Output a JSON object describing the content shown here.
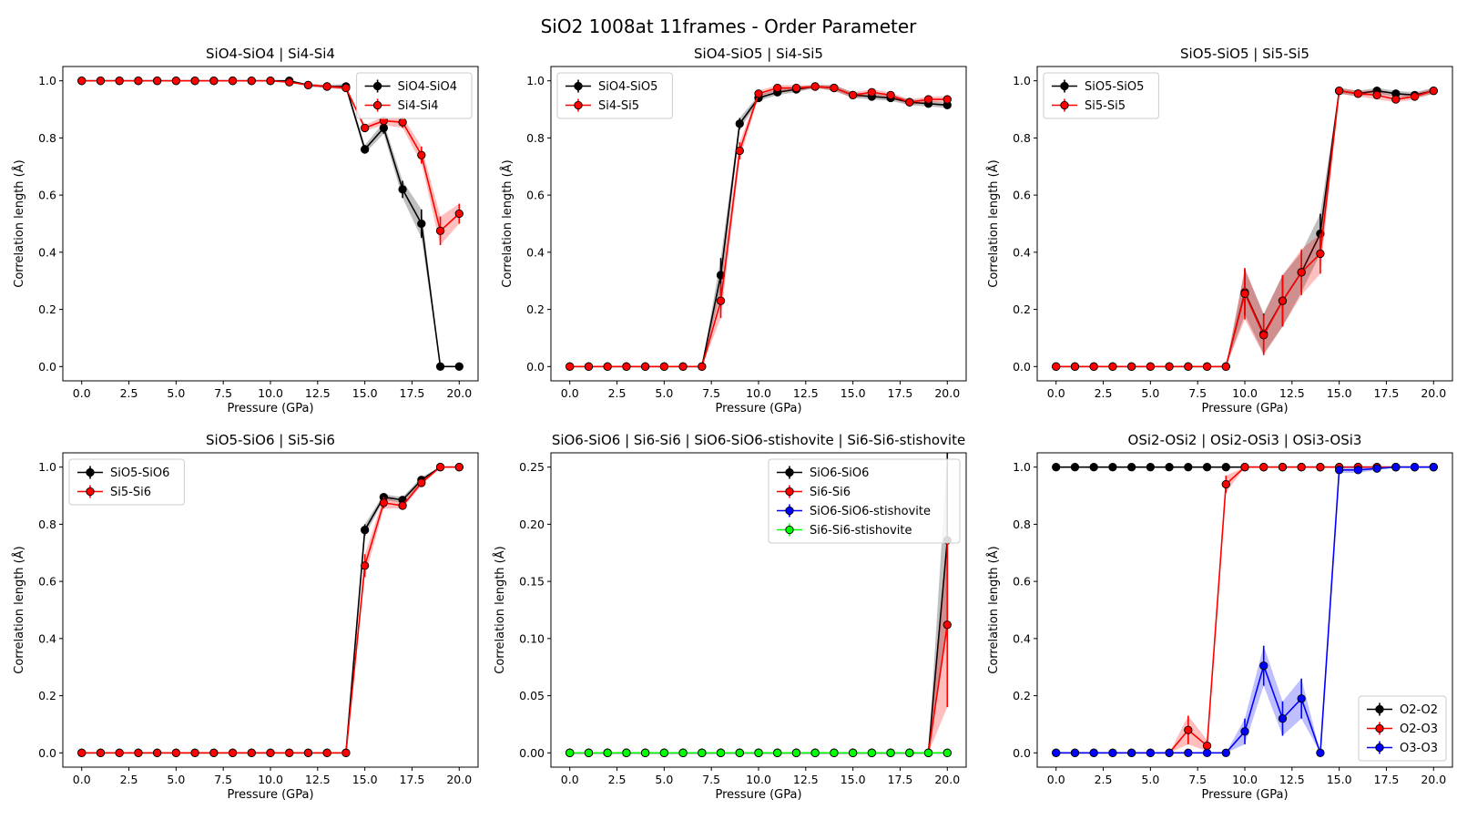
{
  "figure": {
    "title": "SiO2 1008at 11frames - Order Parameter"
  },
  "chart_data": [
    {
      "type": "line",
      "title": "SiO4-SiO4 | Si4-Si4",
      "xlabel": "Pressure (GPa)",
      "ylabel": "Correlation length (Å)",
      "xlim": [
        -1,
        21
      ],
      "ylim": [
        -0.05,
        1.05
      ],
      "xticks": [
        0,
        2.5,
        5,
        7.5,
        10,
        12.5,
        15,
        17.5,
        20
      ],
      "xtick_labels": [
        "0.0",
        "2.5",
        "5.0",
        "7.5",
        "10.0",
        "12.5",
        "15.0",
        "17.5",
        "20.0"
      ],
      "yticks": [
        0,
        0.2,
        0.4,
        0.6,
        0.8,
        1.0
      ],
      "ytick_labels": [
        "0.0",
        "0.2",
        "0.4",
        "0.6",
        "0.8",
        "1.0"
      ],
      "legend_loc": "upper-right",
      "x": [
        0,
        1,
        2,
        3,
        4,
        5,
        6,
        7,
        8,
        9,
        10,
        11,
        12,
        13,
        14,
        15,
        16,
        17,
        18,
        19,
        20
      ],
      "series": [
        {
          "name": "SiO4-SiO4",
          "color": "#000000",
          "values": [
            1,
            1,
            1,
            1,
            1,
            1,
            1,
            1,
            1,
            1,
            1,
            1,
            0.985,
            0.98,
            0.98,
            0.76,
            0.835,
            0.62,
            0.5,
            0,
            0
          ],
          "errors": [
            0,
            0,
            0,
            0,
            0,
            0,
            0,
            0,
            0,
            0,
            0,
            0,
            0.005,
            0.005,
            0.01,
            0.015,
            0.02,
            0.03,
            0.05,
            0,
            0
          ]
        },
        {
          "name": "Si4-Si4",
          "color": "#ff0000",
          "values": [
            1,
            1,
            1,
            1,
            1,
            1,
            1,
            1,
            1,
            1,
            1,
            0.995,
            0.985,
            0.98,
            0.975,
            0.835,
            0.86,
            0.855,
            0.74,
            0.475,
            0.535
          ],
          "errors": [
            0,
            0,
            0,
            0,
            0,
            0,
            0,
            0,
            0,
            0,
            0,
            0,
            0.005,
            0.005,
            0.005,
            0.01,
            0.015,
            0.02,
            0.03,
            0.05,
            0.035
          ]
        }
      ]
    },
    {
      "type": "line",
      "title": "SiO4-SiO5 | Si4-Si5",
      "xlabel": "Pressure (GPa)",
      "ylabel": "Correlation length (Å)",
      "xlim": [
        -1,
        21
      ],
      "ylim": [
        -0.05,
        1.05
      ],
      "xticks": [
        0,
        2.5,
        5,
        7.5,
        10,
        12.5,
        15,
        17.5,
        20
      ],
      "xtick_labels": [
        "0.0",
        "2.5",
        "5.0",
        "7.5",
        "10.0",
        "12.5",
        "15.0",
        "17.5",
        "20.0"
      ],
      "yticks": [
        0,
        0.2,
        0.4,
        0.6,
        0.8,
        1.0
      ],
      "ytick_labels": [
        "0.0",
        "0.2",
        "0.4",
        "0.6",
        "0.8",
        "1.0"
      ],
      "legend_loc": "upper-left",
      "x": [
        0,
        1,
        2,
        3,
        4,
        5,
        6,
        7,
        8,
        9,
        10,
        11,
        12,
        13,
        14,
        15,
        16,
        17,
        18,
        19,
        20
      ],
      "series": [
        {
          "name": "SiO4-SiO5",
          "color": "#000000",
          "values": [
            0,
            0,
            0,
            0,
            0,
            0,
            0,
            0,
            0.32,
            0.85,
            0.94,
            0.96,
            0.97,
            0.98,
            0.975,
            0.95,
            0.945,
            0.94,
            0.925,
            0.92,
            0.915
          ],
          "errors": [
            0,
            0,
            0,
            0,
            0,
            0,
            0,
            0,
            0.06,
            0.02,
            0.01,
            0.01,
            0.01,
            0.005,
            0.01,
            0.01,
            0.01,
            0.01,
            0.01,
            0.01,
            0.01
          ]
        },
        {
          "name": "Si4-Si5",
          "color": "#ff0000",
          "values": [
            0,
            0,
            0,
            0,
            0,
            0,
            0,
            0,
            0.23,
            0.755,
            0.955,
            0.975,
            0.975,
            0.98,
            0.975,
            0.95,
            0.96,
            0.95,
            0.925,
            0.935,
            0.935
          ],
          "errors": [
            0,
            0,
            0,
            0,
            0,
            0,
            0,
            0,
            0.06,
            0.03,
            0.01,
            0.01,
            0.01,
            0.005,
            0.01,
            0.01,
            0.01,
            0.01,
            0.01,
            0.01,
            0.01
          ]
        }
      ]
    },
    {
      "type": "line",
      "title": "SiO5-SiO5 | Si5-Si5",
      "xlabel": "Pressure (GPa)",
      "ylabel": "Correlation length (Å)",
      "xlim": [
        -1,
        21
      ],
      "ylim": [
        -0.05,
        1.05
      ],
      "xticks": [
        0,
        2.5,
        5,
        7.5,
        10,
        12.5,
        15,
        17.5,
        20
      ],
      "xtick_labels": [
        "0.0",
        "2.5",
        "5.0",
        "7.5",
        "10.0",
        "12.5",
        "15.0",
        "17.5",
        "20.0"
      ],
      "yticks": [
        0,
        0.2,
        0.4,
        0.6,
        0.8,
        1.0
      ],
      "ytick_labels": [
        "0.0",
        "0.2",
        "0.4",
        "0.6",
        "0.8",
        "1.0"
      ],
      "legend_loc": "upper-left",
      "x": [
        0,
        1,
        2,
        3,
        4,
        5,
        6,
        7,
        8,
        9,
        10,
        11,
        12,
        13,
        14,
        15,
        16,
        17,
        18,
        19,
        20
      ],
      "series": [
        {
          "name": "SiO5-SiO5",
          "color": "#000000",
          "values": [
            0,
            0,
            0,
            0,
            0,
            0,
            0,
            0,
            0,
            0,
            0.26,
            0.115,
            0.23,
            0.33,
            0.465,
            0.965,
            0.955,
            0.965,
            0.955,
            0.95,
            0.965
          ],
          "errors": [
            0,
            0,
            0,
            0,
            0,
            0,
            0,
            0,
            0,
            0,
            0.08,
            0.07,
            0.09,
            0.07,
            0.07,
            0.01,
            0.01,
            0.01,
            0.01,
            0.01,
            0.01
          ]
        },
        {
          "name": "Si5-Si5",
          "color": "#ff0000",
          "values": [
            0,
            0,
            0,
            0,
            0,
            0,
            0,
            0,
            0,
            0,
            0.255,
            0.11,
            0.23,
            0.33,
            0.395,
            0.965,
            0.955,
            0.95,
            0.935,
            0.945,
            0.965
          ],
          "errors": [
            0,
            0,
            0,
            0,
            0,
            0,
            0,
            0,
            0,
            0,
            0.09,
            0.07,
            0.09,
            0.08,
            0.07,
            0.01,
            0.01,
            0.015,
            0.01,
            0.01,
            0.01
          ]
        }
      ]
    },
    {
      "type": "line",
      "title": "SiO5-SiO6 | Si5-Si6",
      "xlabel": "Pressure (GPa)",
      "ylabel": "Correlation length (Å)",
      "xlim": [
        -1,
        21
      ],
      "ylim": [
        -0.05,
        1.05
      ],
      "xticks": [
        0,
        2.5,
        5,
        7.5,
        10,
        12.5,
        15,
        17.5,
        20
      ],
      "xtick_labels": [
        "0.0",
        "2.5",
        "5.0",
        "7.5",
        "10.0",
        "12.5",
        "15.0",
        "17.5",
        "20.0"
      ],
      "yticks": [
        0,
        0.2,
        0.4,
        0.6,
        0.8,
        1.0
      ],
      "ytick_labels": [
        "0.0",
        "0.2",
        "0.4",
        "0.6",
        "0.8",
        "1.0"
      ],
      "legend_loc": "upper-left",
      "x": [
        0,
        1,
        2,
        3,
        4,
        5,
        6,
        7,
        8,
        9,
        10,
        11,
        12,
        13,
        14,
        15,
        16,
        17,
        18,
        19,
        20
      ],
      "series": [
        {
          "name": "SiO5-SiO6",
          "color": "#000000",
          "values": [
            0,
            0,
            0,
            0,
            0,
            0,
            0,
            0,
            0,
            0,
            0,
            0,
            0,
            0,
            0,
            0.78,
            0.895,
            0.885,
            0.955,
            1.0,
            1.0
          ],
          "errors": [
            0,
            0,
            0,
            0,
            0,
            0,
            0,
            0,
            0,
            0,
            0,
            0,
            0,
            0,
            0,
            0.02,
            0.01,
            0.01,
            0.01,
            0,
            0
          ]
        },
        {
          "name": "Si5-Si6",
          "color": "#ff0000",
          "values": [
            0,
            0,
            0,
            0,
            0,
            0,
            0,
            0,
            0,
            0,
            0,
            0,
            0,
            0,
            0,
            0.655,
            0.875,
            0.865,
            0.945,
            1.0,
            1.0
          ],
          "errors": [
            0,
            0,
            0,
            0,
            0,
            0,
            0,
            0,
            0,
            0,
            0,
            0,
            0,
            0,
            0,
            0.04,
            0.02,
            0.01,
            0.01,
            0,
            0
          ]
        }
      ]
    },
    {
      "type": "line",
      "title": "SiO6-SiO6 | Si6-Si6 | SiO6-SiO6-stishovite | Si6-Si6-stishovite",
      "xlabel": "Pressure (GPa)",
      "ylabel": "Correlation length (Å)",
      "xlim": [
        -1,
        21
      ],
      "ylim": [
        -0.0125,
        0.2625
      ],
      "xticks": [
        0,
        2.5,
        5,
        7.5,
        10,
        12.5,
        15,
        17.5,
        20
      ],
      "xtick_labels": [
        "0.0",
        "2.5",
        "5.0",
        "7.5",
        "10.0",
        "12.5",
        "15.0",
        "17.5",
        "20.0"
      ],
      "yticks": [
        0,
        0.05,
        0.1,
        0.15,
        0.2,
        0.25
      ],
      "ytick_labels": [
        "0.00",
        "0.05",
        "0.10",
        "0.15",
        "0.20",
        "0.25"
      ],
      "legend_loc": "upper-right",
      "x": [
        0,
        1,
        2,
        3,
        4,
        5,
        6,
        7,
        8,
        9,
        10,
        11,
        12,
        13,
        14,
        15,
        16,
        17,
        18,
        19,
        20
      ],
      "series": [
        {
          "name": "SiO6-SiO6",
          "color": "#000000",
          "values": [
            0,
            0,
            0,
            0,
            0,
            0,
            0,
            0,
            0,
            0,
            0,
            0,
            0,
            0,
            0,
            0,
            0,
            0,
            0,
            0,
            0.186
          ],
          "errors": [
            0,
            0,
            0,
            0,
            0,
            0,
            0,
            0,
            0,
            0,
            0,
            0,
            0,
            0,
            0,
            0,
            0,
            0,
            0,
            0,
            0.077
          ]
        },
        {
          "name": "Si6-Si6",
          "color": "#ff0000",
          "values": [
            0,
            0,
            0,
            0,
            0,
            0,
            0,
            0,
            0,
            0,
            0,
            0,
            0,
            0,
            0,
            0,
            0,
            0,
            0,
            0,
            0.112
          ],
          "errors": [
            0,
            0,
            0,
            0,
            0,
            0,
            0,
            0,
            0,
            0,
            0,
            0,
            0,
            0,
            0,
            0,
            0,
            0,
            0,
            0,
            0.072
          ]
        },
        {
          "name": "SiO6-SiO6-stishovite",
          "color": "#0000ff",
          "values": [
            0,
            0,
            0,
            0,
            0,
            0,
            0,
            0,
            0,
            0,
            0,
            0,
            0,
            0,
            0,
            0,
            0,
            0,
            0,
            0,
            0
          ],
          "errors": [
            0,
            0,
            0,
            0,
            0,
            0,
            0,
            0,
            0,
            0,
            0,
            0,
            0,
            0,
            0,
            0,
            0,
            0,
            0,
            0,
            0
          ]
        },
        {
          "name": "Si6-Si6-stishovite",
          "color": "#00ff00",
          "values": [
            0,
            0,
            0,
            0,
            0,
            0,
            0,
            0,
            0,
            0,
            0,
            0,
            0,
            0,
            0,
            0,
            0,
            0,
            0,
            0,
            0
          ],
          "errors": [
            0,
            0,
            0,
            0,
            0,
            0,
            0,
            0,
            0,
            0,
            0,
            0,
            0,
            0,
            0,
            0,
            0,
            0,
            0,
            0,
            0
          ]
        }
      ]
    },
    {
      "type": "line",
      "title": "OSi2-OSi2 | OSi2-OSi3 | OSi3-OSi3",
      "xlabel": "Pressure (GPa)",
      "ylabel": "Correlation length (Å)",
      "xlim": [
        -1,
        21
      ],
      "ylim": [
        -0.05,
        1.05
      ],
      "xticks": [
        0,
        2.5,
        5,
        7.5,
        10,
        12.5,
        15,
        17.5,
        20
      ],
      "xtick_labels": [
        "0.0",
        "2.5",
        "5.0",
        "7.5",
        "10.0",
        "12.5",
        "15.0",
        "17.5",
        "20.0"
      ],
      "yticks": [
        0,
        0.2,
        0.4,
        0.6,
        0.8,
        1.0
      ],
      "ytick_labels": [
        "0.0",
        "0.2",
        "0.4",
        "0.6",
        "0.8",
        "1.0"
      ],
      "legend_loc": "lower-right",
      "x": [
        0,
        1,
        2,
        3,
        4,
        5,
        6,
        7,
        8,
        9,
        10,
        11,
        12,
        13,
        14,
        15,
        16,
        17,
        18,
        19,
        20
      ],
      "series": [
        {
          "name": "O2-O2",
          "color": "#000000",
          "values": [
            1,
            1,
            1,
            1,
            1,
            1,
            1,
            1,
            1,
            1,
            1,
            1,
            1,
            1,
            1,
            1,
            1,
            1,
            1,
            1,
            1
          ],
          "errors": [
            0,
            0,
            0,
            0,
            0,
            0,
            0,
            0,
            0,
            0,
            0,
            0,
            0,
            0,
            0,
            0,
            0,
            0,
            0,
            0,
            0
          ]
        },
        {
          "name": "O2-O3",
          "color": "#ff0000",
          "values": [
            0,
            0,
            0,
            0,
            0,
            0,
            0,
            0.08,
            0.025,
            0.94,
            1.0,
            1.0,
            1.0,
            1.0,
            1.0,
            1.0,
            1.0,
            1.0,
            1.0,
            1.0,
            1.0
          ],
          "errors": [
            0,
            0,
            0,
            0,
            0,
            0,
            0,
            0.05,
            0.02,
            0.03,
            0,
            0,
            0,
            0,
            0,
            0,
            0,
            0,
            0,
            0,
            0
          ]
        },
        {
          "name": "O3-O3",
          "color": "#0000ff",
          "values": [
            0,
            0,
            0,
            0,
            0,
            0,
            0,
            0,
            0,
            0,
            0.075,
            0.305,
            0.12,
            0.19,
            0,
            0.99,
            0.99,
            0.995,
            1.0,
            1.0,
            1.0
          ],
          "errors": [
            0,
            0,
            0,
            0,
            0,
            0,
            0,
            0,
            0,
            0,
            0.045,
            0.07,
            0.06,
            0.07,
            0,
            0.01,
            0.01,
            0.005,
            0,
            0,
            0
          ]
        }
      ]
    }
  ]
}
